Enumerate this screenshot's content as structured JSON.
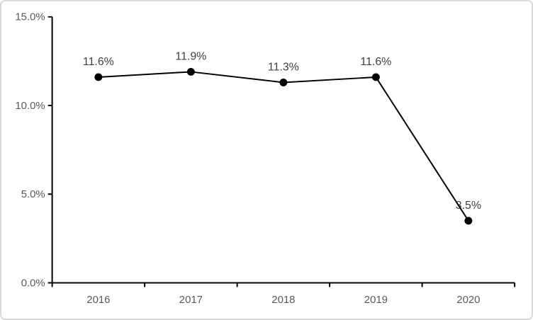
{
  "chart": {
    "background": "#ffffff",
    "border_color": "#d9d9d9"
  },
  "chart_data": {
    "type": "line",
    "categories": [
      "2016",
      "2017",
      "2018",
      "2019",
      "2020"
    ],
    "values": [
      11.6,
      11.9,
      11.3,
      11.6,
      3.5
    ],
    "data_labels": [
      "11.6%",
      "11.9%",
      "11.3%",
      "11.6%",
      "3.5%"
    ],
    "title": "",
    "xlabel": "",
    "ylabel": "",
    "ylim": [
      0,
      15
    ],
    "yticks": {
      "values": [
        0,
        5,
        10,
        15
      ],
      "labels": [
        "0.0%",
        "5.0%",
        "10.0%",
        "15.0%"
      ]
    },
    "grid": false,
    "legend": false,
    "line_color": "#000000",
    "marker_color": "#000000",
    "axis_color": "#000000",
    "axis_label_color": "#595959",
    "data_label_color": "#404040"
  }
}
